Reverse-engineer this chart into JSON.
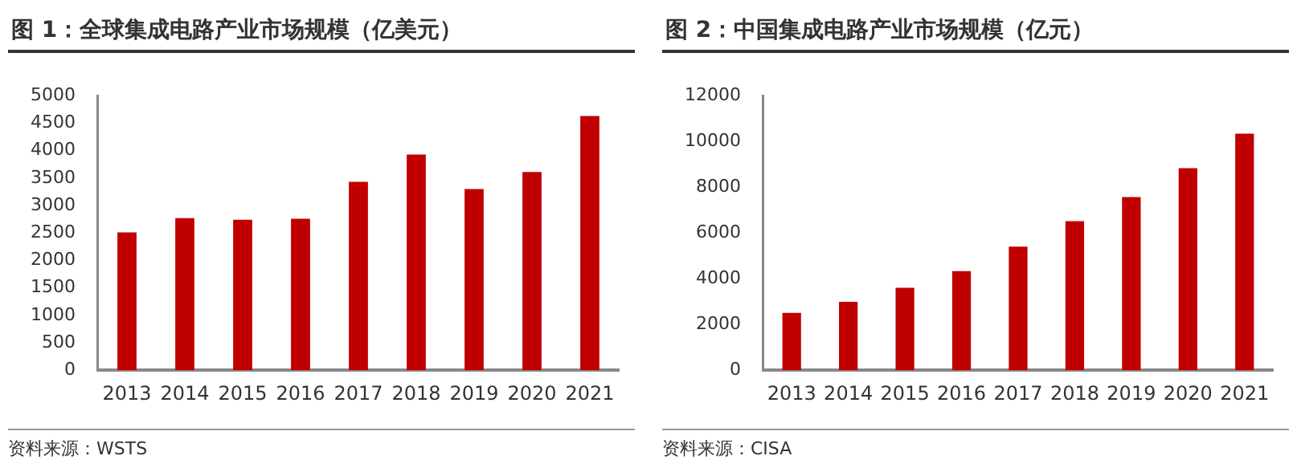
{
  "chart_data": [
    {
      "type": "bar",
      "title": "图 1：全球集成电路产业市场规模（亿美元）",
      "categories": [
        "2013",
        "2014",
        "2015",
        "2016",
        "2017",
        "2018",
        "2019",
        "2020",
        "2021"
      ],
      "values": [
        2510,
        2770,
        2740,
        2760,
        3430,
        3930,
        3300,
        3610,
        4630
      ],
      "color": "#c00000",
      "ylim": [
        0,
        5000
      ],
      "yticks": [
        0,
        500,
        1000,
        1500,
        2000,
        2500,
        3000,
        3500,
        4000,
        4500,
        5000
      ],
      "grid": false,
      "annotations": [
        "资料来源：WSTS"
      ]
    },
    {
      "type": "bar",
      "title": "图 2：中国集成电路产业市场规模（亿元）",
      "categories": [
        "2013",
        "2014",
        "2015",
        "2016",
        "2017",
        "2018",
        "2019",
        "2020",
        "2021"
      ],
      "values": [
        2510,
        2990,
        3600,
        4330,
        5400,
        6520,
        7570,
        8830,
        10340
      ],
      "color": "#c00000",
      "ylim": [
        0,
        12000
      ],
      "yticks": [
        0,
        2000,
        4000,
        6000,
        8000,
        10000,
        12000
      ],
      "grid": false,
      "annotations": [
        "资料来源：CISA"
      ]
    }
  ]
}
